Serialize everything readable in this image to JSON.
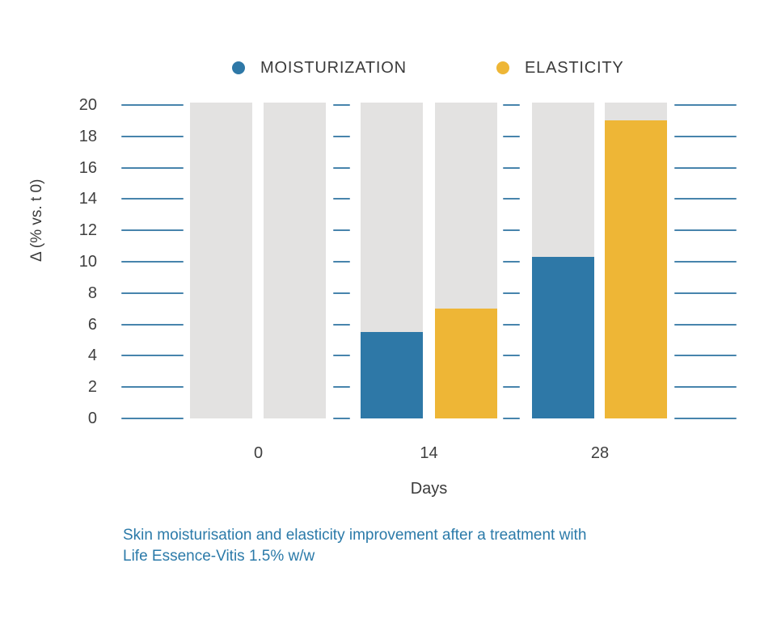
{
  "legend": {
    "items": [
      {
        "label": "MOISTURIZATION",
        "color": "#2E78A7"
      },
      {
        "label": "ELASTICITY",
        "color": "#EEB636"
      }
    ]
  },
  "axes": {
    "y_label": "Δ (% vs. t 0)",
    "x_label": "Days"
  },
  "caption": {
    "line1": "Skin moisturisation and elasticity improvement after a treatment with",
    "line2": "Life Essence-Vitis 1.5% w/w",
    "color": "#2B7AA9"
  },
  "chart_data": {
    "type": "bar",
    "title": "",
    "categories": [
      "0",
      "14",
      "28"
    ],
    "series": [
      {
        "name": "MOISTURIZATION",
        "color": "#2E78A7",
        "values": [
          0,
          5.5,
          10.3
        ]
      },
      {
        "name": "ELASTICITY",
        "color": "#EEB636",
        "values": [
          0,
          7,
          19
        ]
      }
    ],
    "background_bar": {
      "value": 20,
      "color": "#E3E2E1"
    },
    "xlabel": "Days",
    "ylabel": "Δ (% vs. t 0)",
    "ylim": [
      0,
      20
    ],
    "ytick_step": 2,
    "grid": "dashed-segments",
    "gridline_color": "#4784AC",
    "legend_position": "top"
  }
}
